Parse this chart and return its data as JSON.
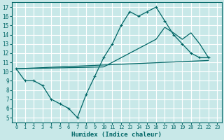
{
  "xlabel": "Humidex (Indice chaleur)",
  "bg_color": "#c8e8e8",
  "grid_color": "#ffffff",
  "line_color": "#006666",
  "xlim": [
    -0.5,
    23.5
  ],
  "ylim": [
    4.5,
    17.5
  ],
  "xticks": [
    0,
    1,
    2,
    3,
    4,
    5,
    6,
    7,
    8,
    9,
    10,
    11,
    12,
    13,
    14,
    15,
    16,
    17,
    18,
    19,
    20,
    21,
    22,
    23
  ],
  "yticks": [
    5,
    6,
    7,
    8,
    9,
    10,
    11,
    12,
    13,
    14,
    15,
    16,
    17
  ],
  "line1_x": [
    0,
    1,
    2,
    3,
    4,
    5,
    6,
    7,
    8,
    9,
    10,
    11,
    12,
    13,
    14,
    15,
    16,
    17,
    18,
    19,
    20,
    21,
    22
  ],
  "line1_y": [
    10.3,
    9.0,
    9.0,
    8.5,
    7.0,
    6.5,
    6.0,
    5.0,
    7.5,
    9.5,
    11.5,
    13.0,
    15.0,
    16.5,
    16.0,
    16.5,
    17.0,
    15.5,
    14.0,
    13.0,
    12.0,
    11.5,
    11.5
  ],
  "line2_x": [
    0,
    22
  ],
  "line2_y": [
    10.3,
    11.2
  ],
  "line3_x": [
    0,
    10,
    11,
    12,
    13,
    14,
    15,
    16,
    17,
    18,
    19,
    20,
    21,
    22
  ],
  "line3_y": [
    10.3,
    10.5,
    11.0,
    11.5,
    12.0,
    12.5,
    13.0,
    13.5,
    14.8,
    14.2,
    13.5,
    14.2,
    13.0,
    11.5
  ]
}
